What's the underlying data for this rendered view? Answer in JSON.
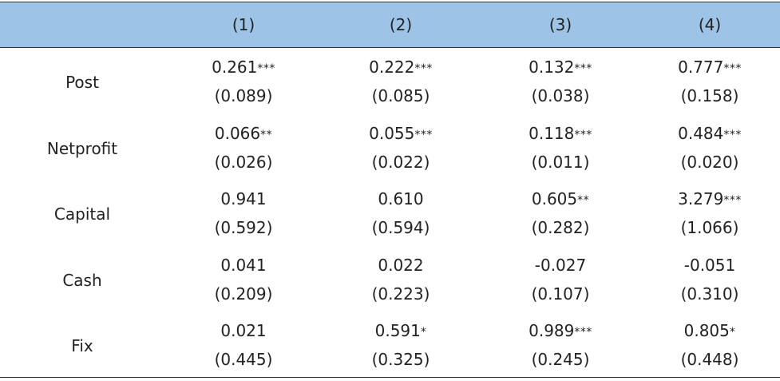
{
  "chart_data": {
    "type": "table",
    "columns": [
      "(1)",
      "(2)",
      "(3)",
      "(4)"
    ],
    "rows": [
      {
        "label": "Post",
        "cells": [
          {
            "coef": "0.261",
            "stars": "***",
            "se": "(0.089)"
          },
          {
            "coef": "0.222",
            "stars": "***",
            "se": "(0.085)"
          },
          {
            "coef": "0.132",
            "stars": "***",
            "se": "(0.038)"
          },
          {
            "coef": "0.777",
            "stars": "***",
            "se": "(0.158)"
          }
        ]
      },
      {
        "label": "Netprofit",
        "cells": [
          {
            "coef": "0.066",
            "stars": "**",
            "se": "(0.026)"
          },
          {
            "coef": "0.055",
            "stars": "***",
            "se": "(0.022)"
          },
          {
            "coef": "0.118",
            "stars": "***",
            "se": "(0.011)"
          },
          {
            "coef": "0.484",
            "stars": "***",
            "se": "(0.020)"
          }
        ]
      },
      {
        "label": "Capital",
        "cells": [
          {
            "coef": "0.941",
            "stars": "",
            "se": "(0.592)"
          },
          {
            "coef": "0.610",
            "stars": "",
            "se": "(0.594)"
          },
          {
            "coef": "0.605",
            "stars": "**",
            "se": "(0.282)"
          },
          {
            "coef": "3.279",
            "stars": "***",
            "se": "(1.066)"
          }
        ]
      },
      {
        "label": "Cash",
        "cells": [
          {
            "coef": "0.041",
            "stars": "",
            "se": "(0.209)"
          },
          {
            "coef": "0.022",
            "stars": "",
            "se": "(0.223)"
          },
          {
            "coef": "-0.027",
            "stars": "",
            "se": "(0.107)"
          },
          {
            "coef": "-0.051",
            "stars": "",
            "se": "(0.310)"
          }
        ]
      },
      {
        "label": "Fix",
        "cells": [
          {
            "coef": "0.021",
            "stars": "",
            "se": "(0.445)"
          },
          {
            "coef": "0.591",
            "stars": "*",
            "se": "(0.325)"
          },
          {
            "coef": "0.989",
            "stars": "***",
            "se": "(0.245)"
          },
          {
            "coef": "0.805",
            "stars": "*",
            "se": "(0.448)"
          }
        ]
      }
    ]
  },
  "colors": {
    "header_background": "#9dc3e6",
    "rule": "#333333",
    "text": "#222222"
  }
}
